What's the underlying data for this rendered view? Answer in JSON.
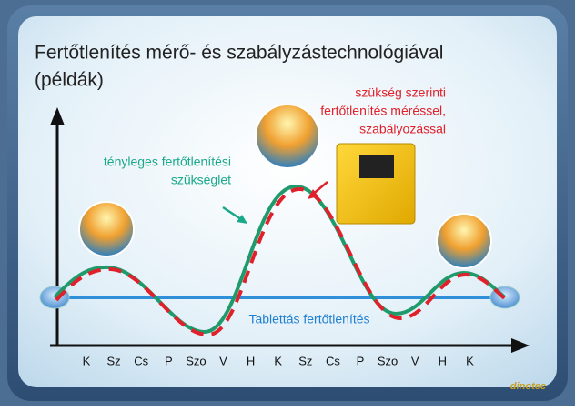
{
  "title": {
    "line1": "Fertőtlenítés mérő- és szabályzástechnológiával",
    "line2": "(példák)"
  },
  "annotations": {
    "measured": [
      "szükség szerinti",
      "fertőtlenítés méréssel,",
      "szabályozással"
    ],
    "actual": [
      "tényleges fertőtlenítési",
      "szükséglet"
    ],
    "tablet": "Tablettás fertőtlenítés"
  },
  "days": [
    "K",
    "Sz",
    "Cs",
    "P",
    "Szo",
    "V",
    "H",
    "K",
    "Sz",
    "Cs",
    "P",
    "Szo",
    "V",
    "H",
    "K"
  ],
  "logo": "dinotec"
}
